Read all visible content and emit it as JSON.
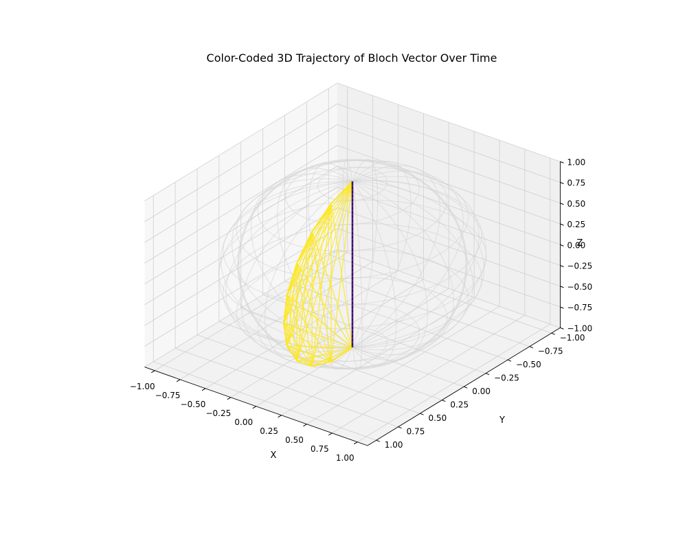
{
  "chart_data": {
    "type": "line3d",
    "title": "Color-Coded 3D Trajectory of Bloch Vector Over Time",
    "xlabel": "X",
    "ylabel": "Y",
    "zlabel": "Z",
    "xlim": [
      -1.1,
      1.1
    ],
    "ylim": [
      -1.1,
      1.1
    ],
    "zlim": [
      -1.0,
      1.0
    ],
    "xticks": [
      "−1.00",
      "−0.75",
      "−0.50",
      "−0.25",
      "0.00",
      "0.25",
      "0.50",
      "0.75",
      "1.00"
    ],
    "yticks": [
      "−1.00",
      "−0.75",
      "−0.50",
      "−0.25",
      "0.00",
      "0.25",
      "0.50",
      "0.75",
      "1.00"
    ],
    "zticks": [
      "−1.00",
      "−0.75",
      "−0.50",
      "−0.25",
      "0.00",
      "0.25",
      "0.50",
      "0.75",
      "1.00"
    ],
    "xtick_values": [
      -1,
      -0.75,
      -0.5,
      -0.25,
      0,
      0.25,
      0.5,
      0.75,
      1
    ],
    "ytick_values": [
      -1,
      -0.75,
      -0.5,
      -0.25,
      0,
      0.25,
      0.5,
      0.75,
      1
    ],
    "ztick_values": [
      -1,
      -0.75,
      -0.5,
      -0.25,
      0,
      0.25,
      0.5,
      0.75,
      1
    ],
    "grid": true,
    "sphere": {
      "radius": 1,
      "color": "#d3d3d3"
    },
    "trajectory": {
      "colormap": "viridis",
      "early_color": "#440154",
      "late_color": "#fde725",
      "z_axis_segment": {
        "x": 0,
        "y": 0,
        "z_range": [
          -1,
          1
        ]
      },
      "meridian_azimuth_deg": 80,
      "polar_samples_deg": [
        0,
        18,
        36,
        54,
        72,
        90,
        108,
        126,
        144,
        162,
        180
      ]
    }
  }
}
